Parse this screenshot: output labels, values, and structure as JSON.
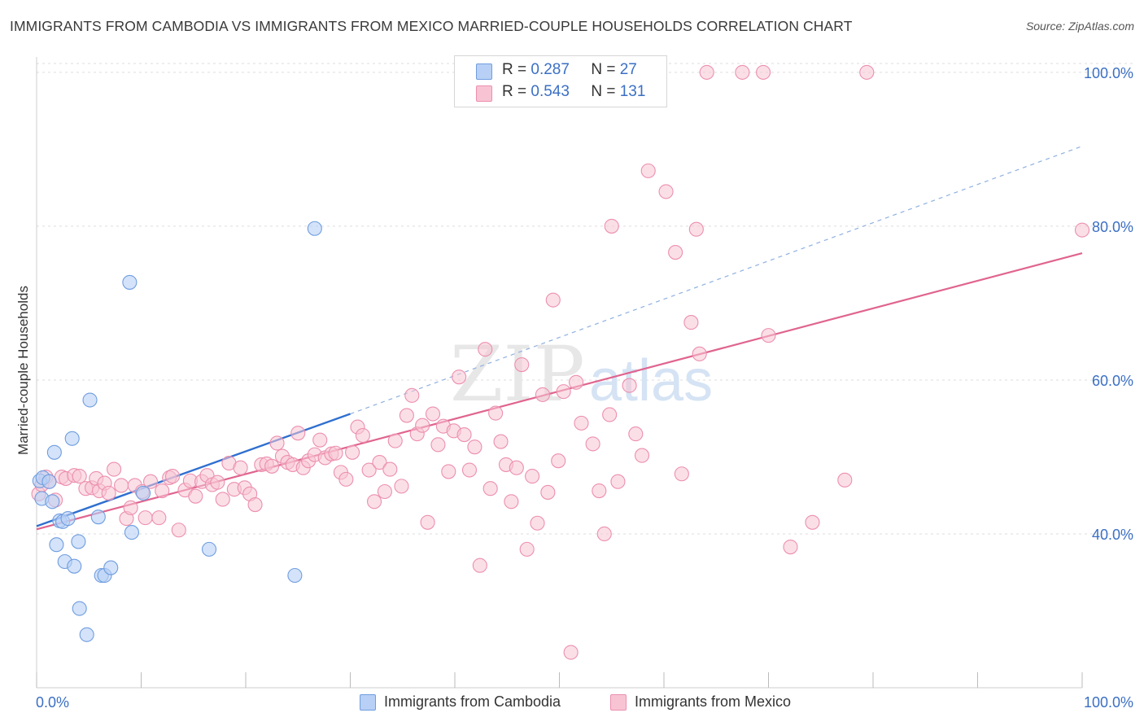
{
  "header": {
    "title": "IMMIGRANTS FROM CAMBODIA VS IMMIGRANTS FROM MEXICO MARRIED-COUPLE HOUSEHOLDS CORRELATION CHART",
    "source": "Source: ZipAtlas.com"
  },
  "watermark": {
    "zip": "ZIP",
    "atlas": "atlas"
  },
  "legend": {
    "cambodia": {
      "r_label": "R =",
      "r_value": "0.287",
      "n_label": "N =",
      "n_value": "27"
    },
    "mexico": {
      "r_label": "R =",
      "r_value": "0.543",
      "n_label": "N =",
      "n_value": "131"
    }
  },
  "colors": {
    "cambodia_fill": "#b8d0f5",
    "cambodia_stroke": "#6f9de0",
    "cambodia_line": "#2f6fd0",
    "mexico_fill": "#f8c4d4",
    "mexico_stroke": "#ec8fae",
    "mexico_line": "#e0648f",
    "tick_label": "#3b6fc4",
    "grid": "#dddddd"
  },
  "chart_data": {
    "type": "scatter",
    "title": "IMMIGRANTS FROM CAMBODIA VS IMMIGRANTS FROM MEXICO MARRIED-COUPLE HOUSEHOLDS CORRELATION CHART",
    "xlabel": "",
    "ylabel": "Married-couple Households",
    "xlim": [
      0,
      100
    ],
    "ylim": [
      20,
      102
    ],
    "x_tick_labels": [
      "0.0%",
      "100.0%"
    ],
    "y_ticks": [
      40,
      60,
      80,
      100
    ],
    "y_tick_labels": [
      "40.0%",
      "60.0%",
      "80.0%",
      "100.0%"
    ],
    "grid": true,
    "legend_position": "top-center",
    "series": [
      {
        "name": "Immigrants from Cambodia",
        "trend": {
          "x0": 0,
          "y0": 41.0,
          "x1": 30,
          "y1": 55.6,
          "dashed_to_x": 100,
          "dashed_to_y": 90.4
        },
        "points": [
          [
            0.3,
            46.9
          ],
          [
            0.5,
            44.6
          ],
          [
            0.6,
            47.3
          ],
          [
            1.2,
            46.8
          ],
          [
            1.5,
            44.2
          ],
          [
            1.7,
            50.6
          ],
          [
            1.9,
            38.6
          ],
          [
            2.2,
            41.7
          ],
          [
            2.5,
            41.6
          ],
          [
            2.7,
            36.4
          ],
          [
            3.0,
            42.0
          ],
          [
            3.4,
            52.4
          ],
          [
            3.6,
            35.8
          ],
          [
            4.0,
            39.0
          ],
          [
            4.1,
            30.3
          ],
          [
            4.8,
            26.9
          ],
          [
            5.1,
            57.4
          ],
          [
            5.9,
            42.2
          ],
          [
            6.2,
            34.6
          ],
          [
            6.5,
            34.6
          ],
          [
            7.1,
            35.6
          ],
          [
            8.9,
            72.7
          ],
          [
            9.1,
            40.2
          ],
          [
            10.2,
            45.3
          ],
          [
            16.5,
            38.0
          ],
          [
            26.6,
            79.7
          ],
          [
            24.7,
            34.6
          ]
        ]
      },
      {
        "name": "Immigrants from Mexico",
        "trend": {
          "x0": 0,
          "y0": 40.6,
          "x1": 100,
          "y1": 76.5
        },
        "points": [
          [
            0.2,
            45.2
          ],
          [
            0.5,
            46.4
          ],
          [
            0.9,
            47.4
          ],
          [
            1.2,
            46.8
          ],
          [
            1.8,
            44.4
          ],
          [
            2.4,
            47.4
          ],
          [
            2.8,
            47.2
          ],
          [
            3.6,
            47.6
          ],
          [
            4.1,
            47.5
          ],
          [
            4.7,
            45.9
          ],
          [
            5.3,
            46.0
          ],
          [
            5.7,
            47.2
          ],
          [
            6.0,
            45.6
          ],
          [
            6.5,
            46.6
          ],
          [
            6.9,
            45.3
          ],
          [
            7.4,
            48.4
          ],
          [
            8.1,
            46.3
          ],
          [
            8.6,
            42.0
          ],
          [
            9.0,
            43.4
          ],
          [
            9.4,
            46.3
          ],
          [
            10.1,
            45.5
          ],
          [
            10.4,
            42.1
          ],
          [
            10.9,
            46.8
          ],
          [
            11.7,
            42.1
          ],
          [
            12.0,
            45.6
          ],
          [
            12.7,
            47.3
          ],
          [
            13.0,
            47.5
          ],
          [
            13.6,
            40.5
          ],
          [
            14.2,
            45.7
          ],
          [
            14.7,
            46.9
          ],
          [
            15.2,
            44.9
          ],
          [
            15.8,
            46.8
          ],
          [
            16.3,
            47.6
          ],
          [
            16.8,
            46.4
          ],
          [
            17.3,
            46.7
          ],
          [
            17.8,
            44.5
          ],
          [
            18.4,
            49.2
          ],
          [
            18.9,
            45.8
          ],
          [
            19.5,
            48.6
          ],
          [
            19.9,
            46.0
          ],
          [
            20.4,
            45.2
          ],
          [
            20.9,
            43.8
          ],
          [
            21.5,
            49.0
          ],
          [
            22.0,
            49.1
          ],
          [
            22.5,
            48.8
          ],
          [
            23.0,
            51.8
          ],
          [
            23.5,
            50.1
          ],
          [
            24.0,
            49.3
          ],
          [
            24.5,
            49.0
          ],
          [
            25.0,
            53.1
          ],
          [
            25.5,
            48.6
          ],
          [
            26.0,
            49.5
          ],
          [
            26.6,
            50.3
          ],
          [
            27.1,
            52.2
          ],
          [
            27.6,
            49.9
          ],
          [
            28.2,
            50.4
          ],
          [
            28.6,
            50.5
          ],
          [
            29.1,
            48.0
          ],
          [
            29.6,
            47.1
          ],
          [
            30.2,
            50.6
          ],
          [
            30.7,
            53.9
          ],
          [
            31.2,
            52.8
          ],
          [
            31.8,
            48.3
          ],
          [
            32.3,
            44.2
          ],
          [
            32.8,
            49.3
          ],
          [
            33.3,
            45.5
          ],
          [
            33.8,
            48.4
          ],
          [
            34.3,
            52.1
          ],
          [
            34.9,
            46.2
          ],
          [
            35.4,
            55.4
          ],
          [
            35.9,
            58.0
          ],
          [
            36.4,
            53.0
          ],
          [
            36.9,
            54.1
          ],
          [
            37.4,
            41.5
          ],
          [
            37.9,
            55.6
          ],
          [
            38.4,
            51.6
          ],
          [
            38.9,
            54.0
          ],
          [
            39.4,
            48.1
          ],
          [
            39.9,
            53.4
          ],
          [
            40.4,
            60.4
          ],
          [
            40.9,
            52.9
          ],
          [
            41.4,
            48.3
          ],
          [
            41.9,
            51.3
          ],
          [
            42.4,
            35.9
          ],
          [
            42.9,
            64.0
          ],
          [
            43.4,
            45.9
          ],
          [
            43.9,
            55.7
          ],
          [
            44.4,
            52.0
          ],
          [
            44.9,
            49.0
          ],
          [
            45.4,
            44.2
          ],
          [
            45.9,
            48.6
          ],
          [
            46.4,
            62.0
          ],
          [
            46.9,
            38.0
          ],
          [
            47.4,
            47.5
          ],
          [
            47.9,
            41.4
          ],
          [
            48.4,
            58.1
          ],
          [
            48.9,
            45.4
          ],
          [
            49.4,
            70.4
          ],
          [
            49.9,
            49.5
          ],
          [
            50.4,
            58.5
          ],
          [
            51.1,
            24.6
          ],
          [
            51.6,
            59.7
          ],
          [
            52.1,
            54.4
          ],
          [
            52.7,
            100.0
          ],
          [
            53.2,
            51.7
          ],
          [
            53.8,
            45.6
          ],
          [
            54.3,
            40.0
          ],
          [
            54.8,
            55.5
          ],
          [
            55.0,
            80.0
          ],
          [
            55.6,
            46.8
          ],
          [
            56.1,
            100.0
          ],
          [
            56.7,
            59.3
          ],
          [
            57.3,
            53.0
          ],
          [
            57.9,
            50.2
          ],
          [
            58.5,
            87.2
          ],
          [
            60.2,
            84.5
          ],
          [
            61.1,
            76.6
          ],
          [
            61.7,
            47.8
          ],
          [
            62.6,
            67.5
          ],
          [
            63.1,
            79.6
          ],
          [
            63.4,
            63.4
          ],
          [
            64.1,
            100.0
          ],
          [
            67.5,
            100.0
          ],
          [
            69.5,
            100.0
          ],
          [
            70.0,
            65.8
          ],
          [
            72.1,
            38.3
          ],
          [
            74.2,
            41.5
          ],
          [
            77.3,
            47.0
          ],
          [
            79.4,
            100.0
          ],
          [
            100.0,
            79.5
          ]
        ]
      }
    ]
  },
  "bottom_legend": {
    "cambodia": "Immigrants from Cambodia",
    "mexico": "Immigrants from Mexico"
  }
}
